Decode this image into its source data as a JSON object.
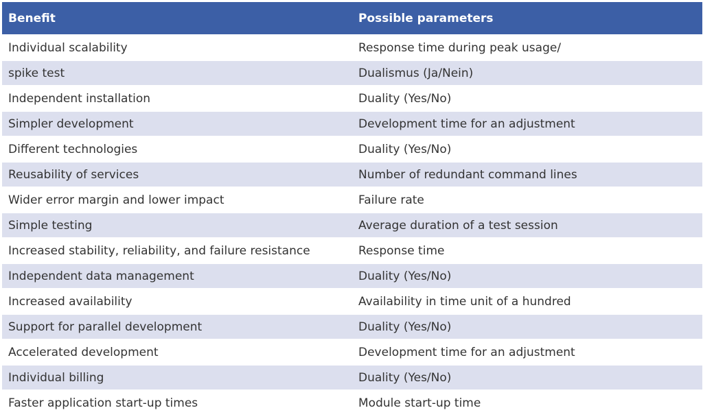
{
  "table": {
    "header": [
      "Benefit",
      "Possible parameters"
    ],
    "rows": [
      [
        "Individual scalability",
        "Response time during peak usage/"
      ],
      [
        "spike test",
        "Dualismus (Ja/Nein)"
      ],
      [
        "Independent installation",
        "Duality (Yes/No)"
      ],
      [
        "Simpler development",
        "Development time for an adjustment"
      ],
      [
        "Different technologies",
        "Duality (Yes/No)"
      ],
      [
        "Reusability of services",
        "Number of redundant command lines"
      ],
      [
        "Wider error margin and lower impact",
        "Failure rate"
      ],
      [
        "Simple testing",
        "Average duration of a test session"
      ],
      [
        "Increased stability, reliability, and failure resistance",
        "Response time"
      ],
      [
        "Independent data management",
        "Duality (Yes/No)"
      ],
      [
        "Increased availability",
        "Availability in time unit of a hundred"
      ],
      [
        "Support for parallel development",
        "Duality (Yes/No)"
      ],
      [
        "Accelerated development",
        "Development time for an adjustment"
      ],
      [
        "Individual billing",
        "Duality (Yes/No)"
      ],
      [
        "Faster application start-up times",
        "Module start-up time"
      ]
    ]
  }
}
